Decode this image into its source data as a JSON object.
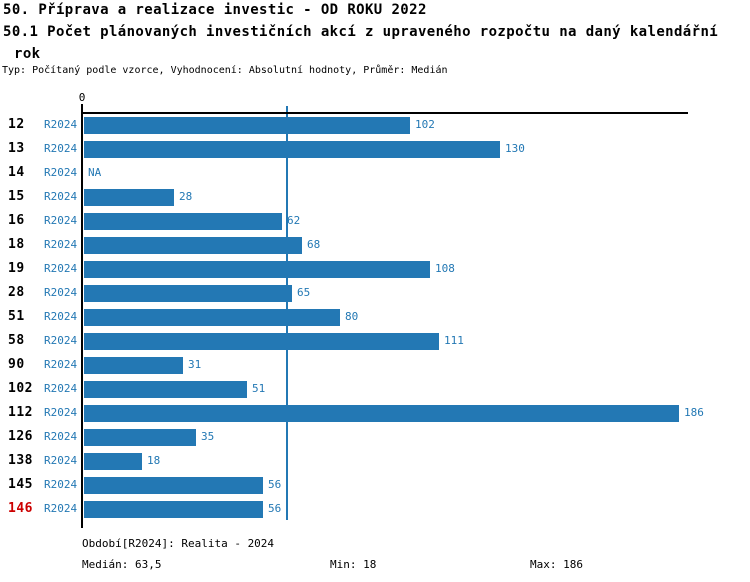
{
  "header": {
    "title_line1": "50. Příprava a realizace investic - OD ROKU 2022",
    "title_line2": "50.1 Počet plánovaných investičních akcí z upraveného rozpočtu na daný kalendářní",
    "title_line3": "rok",
    "subtitle": "Typ: Počítaný podle vzorce, Vyhodnocení: Absolutní hodnoty, Průměr: Medián"
  },
  "chart_data": {
    "type": "bar",
    "orientation": "horizontal",
    "title": "50.1 Počet plánovaných investičních akcí z upraveného rozpočtu na daný kalendářní rok",
    "xlabel": "",
    "ylabel": "",
    "xlim": [
      0,
      189
    ],
    "zero_tick_label": "0",
    "grid": false,
    "legend_position": "none",
    "median_value": 63.5,
    "min_value": 18,
    "max_value": 186,
    "bar_color": "#2378b4",
    "label_color": "#2378b4",
    "highlight_color": "#cc0000",
    "categories": [
      "12",
      "13",
      "14",
      "15",
      "16",
      "18",
      "19",
      "28",
      "51",
      "58",
      "90",
      "102",
      "112",
      "126",
      "138",
      "145",
      "146"
    ],
    "series": [
      {
        "name": "R2024",
        "values": [
          102,
          130,
          null,
          28,
          62,
          68,
          108,
          65,
          80,
          111,
          31,
          51,
          186,
          35,
          18,
          56,
          56
        ]
      }
    ],
    "rows": [
      {
        "id": "12",
        "period": "R2024",
        "value": 102,
        "label": "102",
        "highlight": false
      },
      {
        "id": "13",
        "period": "R2024",
        "value": 130,
        "label": "130",
        "highlight": false
      },
      {
        "id": "14",
        "period": "R2024",
        "value": null,
        "label": "NA",
        "highlight": false
      },
      {
        "id": "15",
        "period": "R2024",
        "value": 28,
        "label": "28",
        "highlight": false
      },
      {
        "id": "16",
        "period": "R2024",
        "value": 62,
        "label": "62",
        "highlight": false
      },
      {
        "id": "18",
        "period": "R2024",
        "value": 68,
        "label": "68",
        "highlight": false
      },
      {
        "id": "19",
        "period": "R2024",
        "value": 108,
        "label": "108",
        "highlight": false
      },
      {
        "id": "28",
        "period": "R2024",
        "value": 65,
        "label": "65",
        "highlight": false
      },
      {
        "id": "51",
        "period": "R2024",
        "value": 80,
        "label": "80",
        "highlight": false
      },
      {
        "id": "58",
        "period": "R2024",
        "value": 111,
        "label": "111",
        "highlight": false
      },
      {
        "id": "90",
        "period": "R2024",
        "value": 31,
        "label": "31",
        "highlight": false
      },
      {
        "id": "102",
        "period": "R2024",
        "value": 51,
        "label": "51",
        "highlight": false
      },
      {
        "id": "112",
        "period": "R2024",
        "value": 186,
        "label": "186",
        "highlight": false
      },
      {
        "id": "126",
        "period": "R2024",
        "value": 35,
        "label": "35",
        "highlight": false
      },
      {
        "id": "138",
        "period": "R2024",
        "value": 18,
        "label": "18",
        "highlight": false
      },
      {
        "id": "145",
        "period": "R2024",
        "value": 56,
        "label": "56",
        "highlight": false
      },
      {
        "id": "146",
        "period": "R2024",
        "value": 56,
        "label": "56",
        "highlight": true
      }
    ]
  },
  "footer": {
    "period_line": "Období[R2024]: Realita - 2024",
    "median_label": "Medián: 63,5",
    "min_label": "Min: 18",
    "max_label": "Max: 186"
  }
}
